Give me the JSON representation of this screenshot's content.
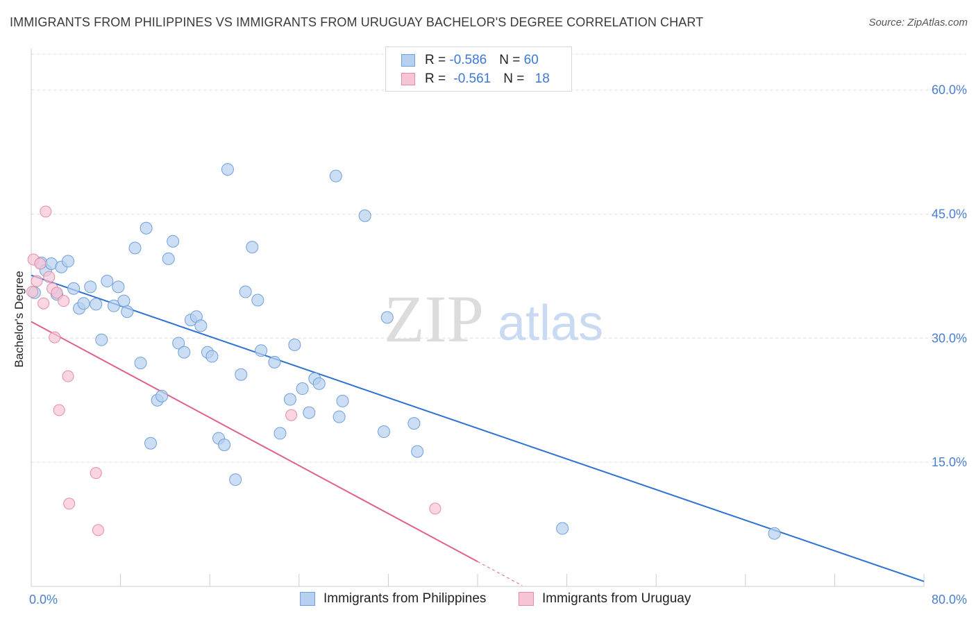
{
  "title": "IMMIGRANTS FROM PHILIPPINES VS IMMIGRANTS FROM URUGUAY BACHELOR'S DEGREE CORRELATION CHART",
  "source": "Source: ZipAtlas.com",
  "watermark": {
    "zip": "ZIP",
    "atlas": "atlas"
  },
  "colors": {
    "philippines_fill": "#b7d0f0",
    "philippines_stroke": "#6f9fdc",
    "philippines_line": "#2c72d3",
    "uruguay_fill": "#f7c5d5",
    "uruguay_stroke": "#e48aa8",
    "uruguay_line": "#e0608e",
    "tick_text": "#4a7fd0",
    "grid": "#dddddd"
  },
  "legend": {
    "rows": [
      {
        "r_label": "R = ",
        "r_value": "-0.586",
        "n_label": "N = ",
        "n_value": "60"
      },
      {
        "r_label": "R = ",
        "r_value": "-0.561",
        "n_label": "N = ",
        "n_value": "18"
      }
    ]
  },
  "chart_data": {
    "type": "scatter",
    "ylabel": "Bachelor's Degree",
    "xlim": [
      0,
      80
    ],
    "ylim": [
      0,
      65
    ],
    "x_tick_labels": [
      {
        "value": 0,
        "label": "0.0%"
      },
      {
        "value": 80,
        "label": "80.0%"
      }
    ],
    "y_ticks": [
      {
        "value": 15,
        "label": "15.0%"
      },
      {
        "value": 30,
        "label": "30.0%"
      },
      {
        "value": 45,
        "label": "45.0%"
      },
      {
        "value": 60,
        "label": "60.0%"
      }
    ],
    "series": [
      {
        "name": "Immigrants from Philippines",
        "trend": {
          "x": [
            0,
            80
          ],
          "y": [
            37.6,
            0.6
          ]
        },
        "points": [
          [
            0.3,
            35.5
          ],
          [
            0.9,
            39.1
          ],
          [
            1.3,
            38.2
          ],
          [
            1.8,
            39.0
          ],
          [
            2.3,
            35.3
          ],
          [
            2.7,
            38.6
          ],
          [
            3.3,
            39.3
          ],
          [
            3.8,
            36.0
          ],
          [
            4.3,
            33.6
          ],
          [
            4.7,
            34.2
          ],
          [
            5.3,
            36.2
          ],
          [
            5.8,
            34.1
          ],
          [
            6.3,
            29.8
          ],
          [
            6.8,
            36.9
          ],
          [
            7.4,
            33.9
          ],
          [
            7.8,
            36.2
          ],
          [
            8.3,
            34.5
          ],
          [
            8.6,
            33.2
          ],
          [
            9.3,
            40.9
          ],
          [
            9.8,
            27.0
          ],
          [
            10.3,
            43.3
          ],
          [
            10.7,
            17.3
          ],
          [
            11.3,
            22.5
          ],
          [
            11.7,
            23.0
          ],
          [
            12.3,
            39.6
          ],
          [
            12.7,
            41.7
          ],
          [
            13.2,
            29.4
          ],
          [
            13.7,
            28.3
          ],
          [
            14.3,
            32.2
          ],
          [
            14.8,
            32.6
          ],
          [
            15.2,
            31.5
          ],
          [
            15.8,
            28.3
          ],
          [
            16.2,
            27.8
          ],
          [
            16.8,
            17.9
          ],
          [
            17.3,
            17.1
          ],
          [
            17.6,
            50.4
          ],
          [
            18.3,
            12.9
          ],
          [
            18.8,
            25.6
          ],
          [
            19.2,
            35.6
          ],
          [
            19.8,
            41.0
          ],
          [
            20.3,
            34.6
          ],
          [
            20.6,
            28.5
          ],
          [
            21.8,
            27.1
          ],
          [
            22.3,
            18.5
          ],
          [
            23.2,
            22.6
          ],
          [
            23.6,
            29.2
          ],
          [
            24.3,
            23.9
          ],
          [
            24.9,
            21.0
          ],
          [
            25.4,
            25.1
          ],
          [
            25.8,
            24.5
          ],
          [
            27.3,
            49.6
          ],
          [
            27.6,
            20.5
          ],
          [
            27.9,
            22.4
          ],
          [
            29.9,
            44.8
          ],
          [
            31.6,
            18.7
          ],
          [
            31.9,
            32.5
          ],
          [
            34.3,
            19.7
          ],
          [
            34.6,
            16.3
          ],
          [
            47.6,
            7.0
          ],
          [
            66.6,
            6.4
          ]
        ]
      },
      {
        "name": "Immigrants from Uruguay",
        "trend": {
          "x": [
            0,
            40.0
          ],
          "y": [
            32.0,
            3.0
          ]
        },
        "trend_dashed": {
          "x": [
            40.0,
            44.0
          ],
          "y": [
            3.0,
            0.1
          ]
        },
        "points": [
          [
            0.2,
            39.5
          ],
          [
            0.5,
            36.9
          ],
          [
            0.8,
            39.0
          ],
          [
            1.1,
            34.2
          ],
          [
            1.3,
            45.3
          ],
          [
            1.6,
            37.4
          ],
          [
            1.9,
            36.0
          ],
          [
            2.1,
            30.1
          ],
          [
            2.3,
            35.5
          ],
          [
            2.5,
            21.3
          ],
          [
            2.9,
            34.5
          ],
          [
            3.3,
            25.4
          ],
          [
            3.4,
            10.0
          ],
          [
            5.8,
            13.7
          ],
          [
            6.0,
            6.8
          ],
          [
            23.3,
            20.7
          ],
          [
            36.2,
            9.4
          ],
          [
            0.1,
            35.6
          ]
        ]
      }
    ]
  }
}
